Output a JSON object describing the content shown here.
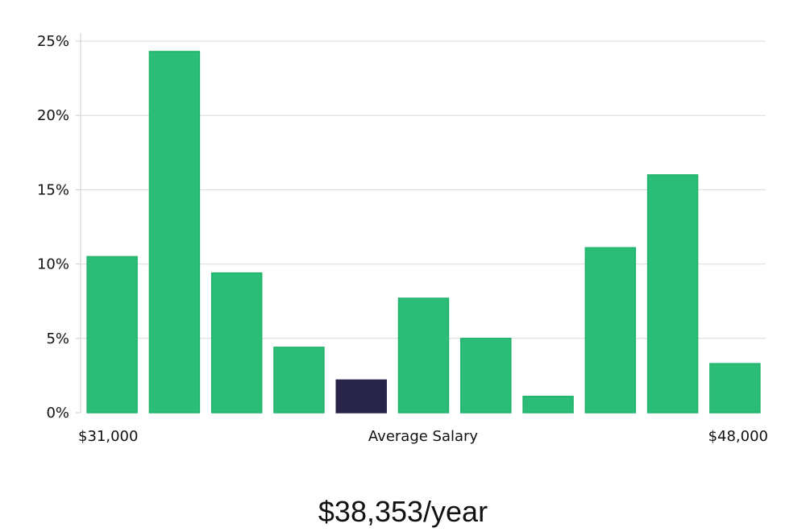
{
  "chart_data": {
    "type": "bar",
    "categories": [
      "",
      "",
      "",
      "",
      "",
      "",
      "",
      "",
      "",
      "",
      ""
    ],
    "values": [
      10.5,
      24.3,
      9.4,
      4.4,
      2.2,
      7.7,
      5.0,
      1.1,
      11.1,
      16.0,
      3.3
    ],
    "highlight_index": 4,
    "ylim": [
      0,
      25
    ],
    "yticks": [
      0,
      5,
      10,
      15,
      20,
      25
    ],
    "ytick_suffix": "%",
    "grid": true,
    "x_range_labels": {
      "left": "$31,000",
      "right": "$48,000"
    },
    "xlabel": "Average Salary",
    "ylabel": "",
    "title": ""
  },
  "headline": "$38,353/year",
  "colors": {
    "bar": "#2bbd77",
    "bar_stroke": "#20b36c",
    "highlight": "#29254a",
    "grid": "#d9d9d9",
    "axis": "#cccccc"
  }
}
